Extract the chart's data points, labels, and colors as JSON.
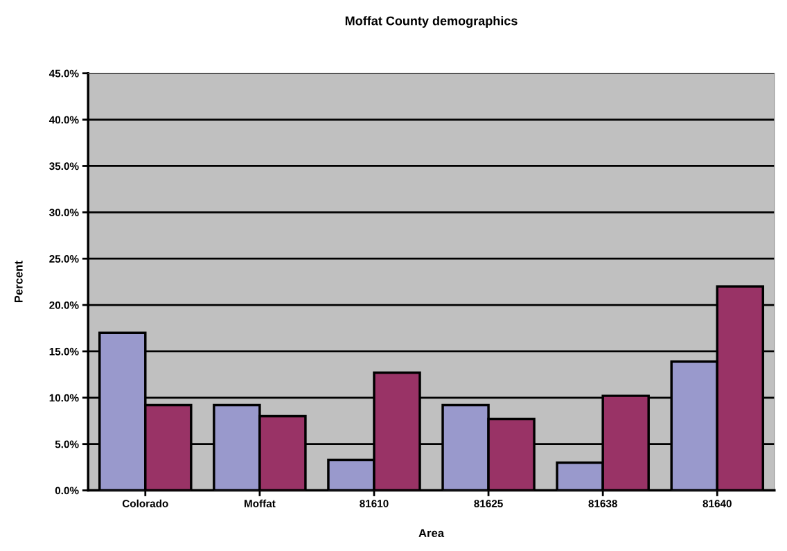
{
  "chart_data": {
    "type": "bar",
    "title": "Moffat County demographics",
    "xlabel": "Area",
    "ylabel": "Percent",
    "categories": [
      "Colorado",
      "Moffat",
      "81610",
      "81625",
      "81638",
      "81640"
    ],
    "series": [
      {
        "color": "#9999cc",
        "values": [
          17.0,
          9.2,
          3.3,
          9.2,
          3.0,
          13.9
        ]
      },
      {
        "color": "#993366",
        "values": [
          9.2,
          8.0,
          12.7,
          7.7,
          10.2,
          22.0
        ]
      }
    ],
    "ylim": [
      0,
      45
    ],
    "yticks": [
      {
        "value": 0,
        "label": "0.0%"
      },
      {
        "value": 5,
        "label": "5.0%"
      },
      {
        "value": 10,
        "label": "10.0%"
      },
      {
        "value": 15,
        "label": "15.0%"
      },
      {
        "value": 20,
        "label": "20.0%"
      },
      {
        "value": 25,
        "label": "25.0%"
      },
      {
        "value": 30,
        "label": "30.0%"
      },
      {
        "value": 35,
        "label": "35.0%"
      },
      {
        "value": 40,
        "label": "40.0%"
      },
      {
        "value": 45,
        "label": "45.0%"
      }
    ],
    "grid": "y"
  }
}
